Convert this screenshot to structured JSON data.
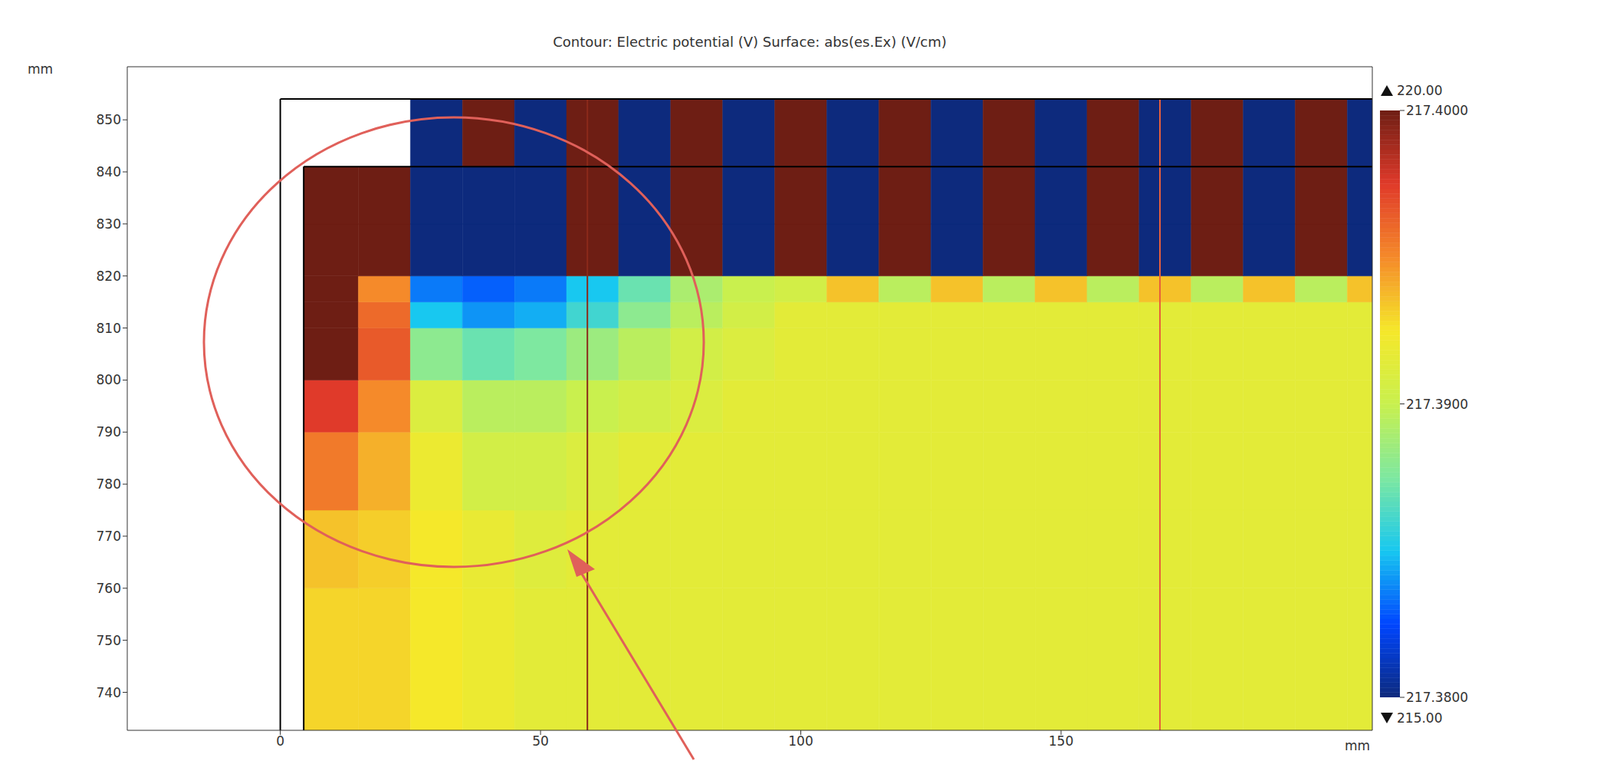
{
  "chart_data": {
    "type": "heatmap",
    "title": "Contour: Electric potential (V)  Surface: abs(es.Ex) (V/cm)",
    "x_label": "mm",
    "y_label": "mm",
    "xlim": [
      -29.4,
      209.8
    ],
    "xticks": [
      0,
      50,
      100,
      150
    ],
    "ylim": [
      732.7,
      860.2
    ],
    "yticks": [
      740,
      750,
      760,
      770,
      780,
      790,
      800,
      810,
      820,
      830,
      840,
      850
    ],
    "heatmap": {
      "x_edges": [
        4.5,
        15,
        25,
        35,
        45,
        55,
        65,
        75,
        85,
        95,
        105,
        115,
        125,
        135,
        145,
        155,
        165,
        175,
        185,
        195,
        205,
        210
      ],
      "y_edges": [
        732.7,
        760,
        775,
        790,
        800,
        810,
        815,
        820,
        830,
        841,
        854
      ],
      "values": [
        [
          217.393,
          217.393,
          217.3925,
          217.392,
          217.3915,
          217.3915,
          217.3915,
          217.3915,
          217.3915,
          217.3915,
          217.3915,
          217.3915,
          217.3915,
          217.3915,
          217.3915,
          217.3915,
          217.3915,
          217.3915,
          217.3915,
          217.3915,
          217.3915
        ],
        [
          217.3935,
          217.3932,
          217.3925,
          217.3918,
          217.3912,
          217.3915,
          217.3915,
          217.3915,
          217.3915,
          217.3915,
          217.3915,
          217.3915,
          217.3915,
          217.3915,
          217.3915,
          217.3915,
          217.3915,
          217.3915,
          217.3915,
          217.3915,
          217.3915
        ],
        [
          217.3955,
          217.394,
          217.392,
          217.3905,
          217.3905,
          217.391,
          217.3915,
          217.3915,
          217.3915,
          217.3915,
          217.3915,
          217.3915,
          217.3915,
          217.3915,
          217.3915,
          217.3915,
          217.3915,
          217.3915,
          217.3915,
          217.3915,
          217.3915
        ],
        [
          217.3975,
          217.395,
          217.391,
          217.3895,
          217.3895,
          217.39,
          217.3905,
          217.391,
          217.3915,
          217.3915,
          217.3915,
          217.3915,
          217.3915,
          217.3915,
          217.3915,
          217.3915,
          217.3915,
          217.3915,
          217.3915,
          217.3915,
          217.3915
        ],
        [
          217.401,
          217.3965,
          217.388,
          217.387,
          217.3875,
          217.3885,
          217.3895,
          217.3905,
          217.391,
          217.3915,
          217.3915,
          217.3915,
          217.3915,
          217.3915,
          217.3915,
          217.3915,
          217.3915,
          217.3915,
          217.3915,
          217.3915,
          217.3915
        ],
        [
          217.402,
          217.396,
          217.385,
          217.384,
          217.3845,
          217.386,
          217.388,
          217.3895,
          217.3905,
          217.3915,
          217.3915,
          217.3915,
          217.3915,
          217.3915,
          217.3915,
          217.3915,
          217.3915,
          217.3915,
          217.3915,
          217.3915,
          217.3915
        ],
        [
          217.402,
          217.395,
          217.3835,
          217.383,
          217.3835,
          217.385,
          217.387,
          217.389,
          217.39,
          217.3905,
          217.3935,
          217.3895,
          217.3935,
          217.3895,
          217.3935,
          217.3895,
          217.3935,
          217.3895,
          217.3935,
          217.3895,
          217.3935
        ],
        [
          217.405,
          217.403,
          217.375,
          217.375,
          217.375,
          217.405,
          217.375,
          217.405,
          217.375,
          217.405,
          217.375,
          217.405,
          217.375,
          217.405,
          217.375,
          217.405,
          217.375,
          217.405,
          217.375,
          217.405,
          217.375
        ],
        [
          217.405,
          217.403,
          217.375,
          217.375,
          217.375,
          217.405,
          217.375,
          217.405,
          217.375,
          217.405,
          217.375,
          217.405,
          217.375,
          217.405,
          217.375,
          217.405,
          217.375,
          217.405,
          217.375,
          217.405,
          217.375
        ],
        [
          null,
          null,
          217.375,
          217.405,
          217.375,
          217.405,
          217.375,
          217.405,
          217.375,
          217.405,
          217.375,
          217.405,
          217.375,
          217.405,
          217.375,
          217.405,
          217.375,
          217.405,
          217.375,
          217.405,
          217.375
        ]
      ]
    },
    "boundaries": [
      [
        [
          0,
          732.7
        ],
        [
          0,
          854
        ],
        [
          209.8,
          854
        ]
      ],
      [
        [
          4.5,
          732.7
        ],
        [
          4.5,
          841
        ],
        [
          209.8,
          841
        ]
      ]
    ],
    "lines": [
      {
        "x": 59,
        "y": [
          732.7,
          854
        ],
        "color": "#8b2a1a"
      },
      {
        "x": 169,
        "y": [
          732.7,
          854
        ],
        "color": "#e8603c"
      }
    ],
    "colorbar": {
      "range": [
        217.38,
        217.4
      ],
      "ticks": [
        {
          "value": 217.38,
          "label": "217.3800"
        },
        {
          "value": 217.39,
          "label": "217.3900"
        },
        {
          "value": 217.4,
          "label": "217.4000"
        }
      ],
      "max": 220,
      "max_label": "220.00",
      "min": 215,
      "min_label": "215.00",
      "colors": [
        "#0d2a7d",
        "#0046ff",
        "#18c8f0",
        "#7ee8a0",
        "#c9f04e",
        "#f5e82a",
        "#f58a2a",
        "#e03a2a",
        "#6e1e14"
      ]
    }
  }
}
